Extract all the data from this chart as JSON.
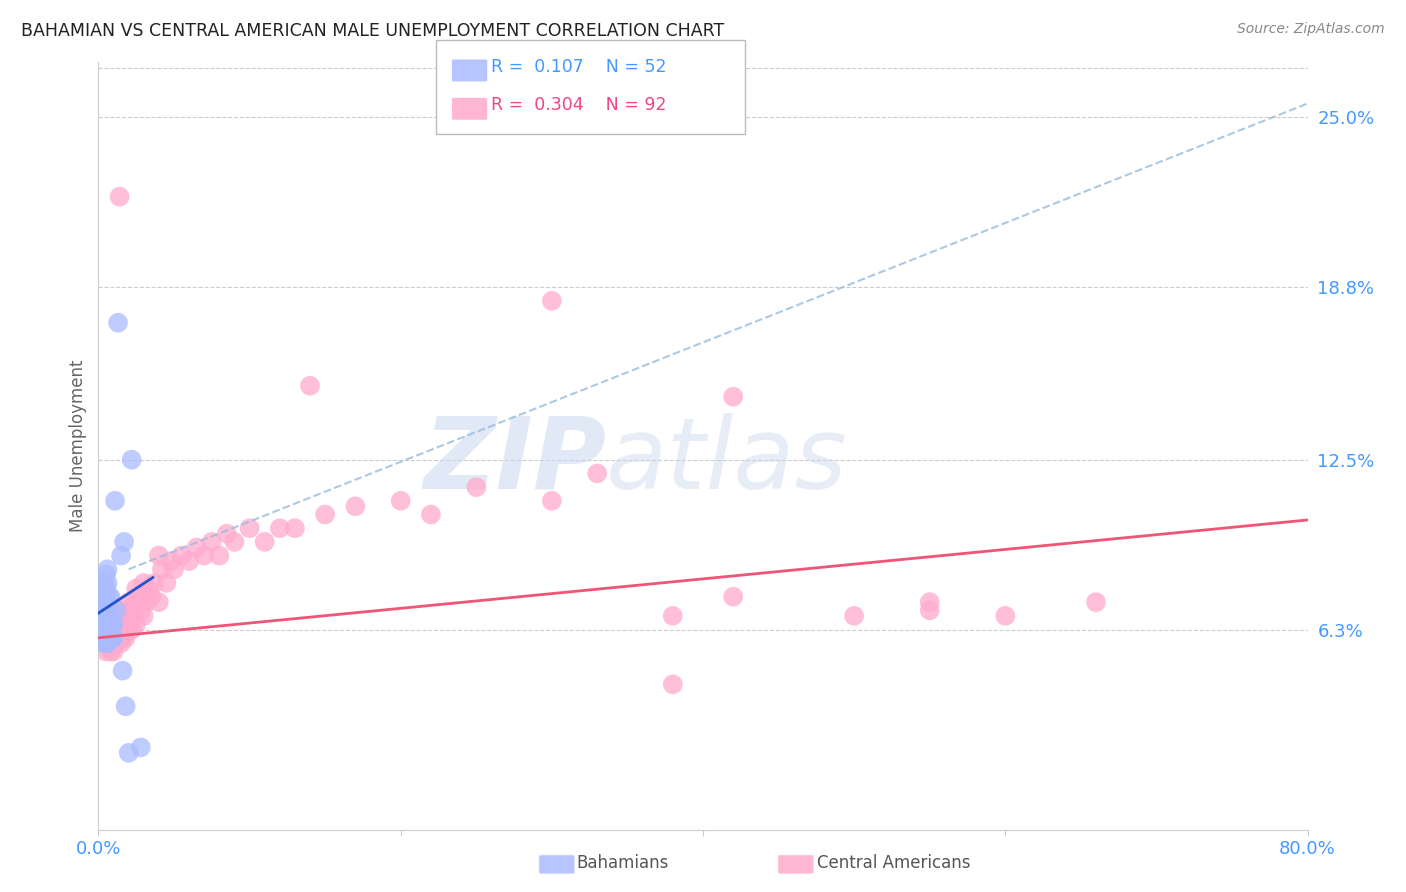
{
  "title": "BAHAMIAN VS CENTRAL AMERICAN MALE UNEMPLOYMENT CORRELATION CHART",
  "source": "Source: ZipAtlas.com",
  "ylabel": "Male Unemployment",
  "ytick_labels": [
    "25.0%",
    "18.8%",
    "12.5%",
    "6.3%"
  ],
  "ytick_values": [
    0.25,
    0.188,
    0.125,
    0.063
  ],
  "background_color": "#ffffff",
  "grid_color": "#cccccc",
  "blue_color": "#aabbff",
  "pink_color": "#ffaacc",
  "blue_line_color": "#2255cc",
  "pink_line_color": "#ee5577",
  "dash_line_color": "#99bbdd",
  "label_color": "#4499ff",
  "title_color": "#222222",
  "source_color": "#888888",
  "watermark": "ZIPatlas",
  "xmin": 0.0,
  "xmax": 0.8,
  "ymin": -0.01,
  "ymax": 0.27,
  "blue_r": 0.107,
  "blue_n": 52,
  "pink_r": 0.304,
  "pink_n": 92,
  "blue_scatter_x": [
    0.002,
    0.002,
    0.003,
    0.003,
    0.003,
    0.003,
    0.003,
    0.003,
    0.004,
    0.004,
    0.004,
    0.004,
    0.004,
    0.004,
    0.004,
    0.004,
    0.005,
    0.005,
    0.005,
    0.005,
    0.005,
    0.005,
    0.005,
    0.005,
    0.005,
    0.006,
    0.006,
    0.006,
    0.006,
    0.006,
    0.006,
    0.007,
    0.007,
    0.007,
    0.007,
    0.008,
    0.008,
    0.008,
    0.009,
    0.009,
    0.01,
    0.01,
    0.011,
    0.012,
    0.013,
    0.015,
    0.016,
    0.017,
    0.018,
    0.02,
    0.022,
    0.028
  ],
  "blue_scatter_y": [
    0.065,
    0.068,
    0.06,
    0.063,
    0.068,
    0.07,
    0.073,
    0.075,
    0.058,
    0.062,
    0.065,
    0.068,
    0.07,
    0.073,
    0.078,
    0.08,
    0.058,
    0.06,
    0.063,
    0.065,
    0.068,
    0.07,
    0.073,
    0.078,
    0.083,
    0.058,
    0.063,
    0.068,
    0.073,
    0.08,
    0.085,
    0.06,
    0.065,
    0.07,
    0.075,
    0.06,
    0.065,
    0.075,
    0.06,
    0.065,
    0.06,
    0.065,
    0.11,
    0.07,
    0.175,
    0.09,
    0.048,
    0.095,
    0.035,
    0.018,
    0.125,
    0.02
  ],
  "pink_scatter_x": [
    0.002,
    0.003,
    0.003,
    0.004,
    0.004,
    0.005,
    0.005,
    0.005,
    0.006,
    0.006,
    0.007,
    0.007,
    0.007,
    0.008,
    0.008,
    0.008,
    0.009,
    0.009,
    0.01,
    0.01,
    0.01,
    0.011,
    0.011,
    0.012,
    0.012,
    0.012,
    0.013,
    0.013,
    0.014,
    0.014,
    0.015,
    0.015,
    0.016,
    0.016,
    0.017,
    0.017,
    0.018,
    0.018,
    0.019,
    0.02,
    0.02,
    0.022,
    0.022,
    0.023,
    0.024,
    0.025,
    0.025,
    0.027,
    0.028,
    0.03,
    0.03,
    0.032,
    0.033,
    0.035,
    0.037,
    0.04,
    0.04,
    0.042,
    0.045,
    0.048,
    0.05,
    0.055,
    0.06,
    0.065,
    0.07,
    0.075,
    0.08,
    0.085,
    0.09,
    0.1,
    0.11,
    0.12,
    0.13,
    0.15,
    0.17,
    0.2,
    0.22,
    0.25,
    0.3,
    0.33,
    0.38,
    0.42,
    0.5,
    0.55,
    0.6,
    0.66,
    0.42,
    0.55,
    0.38,
    0.014,
    0.3,
    0.14
  ],
  "pink_scatter_y": [
    0.063,
    0.058,
    0.068,
    0.06,
    0.065,
    0.055,
    0.06,
    0.068,
    0.06,
    0.065,
    0.058,
    0.063,
    0.068,
    0.055,
    0.06,
    0.065,
    0.058,
    0.063,
    0.055,
    0.06,
    0.065,
    0.058,
    0.063,
    0.058,
    0.063,
    0.068,
    0.06,
    0.065,
    0.06,
    0.068,
    0.058,
    0.065,
    0.06,
    0.068,
    0.063,
    0.07,
    0.06,
    0.068,
    0.065,
    0.065,
    0.073,
    0.063,
    0.07,
    0.068,
    0.073,
    0.065,
    0.078,
    0.075,
    0.07,
    0.068,
    0.08,
    0.073,
    0.078,
    0.075,
    0.08,
    0.073,
    0.09,
    0.085,
    0.08,
    0.088,
    0.085,
    0.09,
    0.088,
    0.093,
    0.09,
    0.095,
    0.09,
    0.098,
    0.095,
    0.1,
    0.095,
    0.1,
    0.1,
    0.105,
    0.108,
    0.11,
    0.105,
    0.115,
    0.11,
    0.12,
    0.068,
    0.075,
    0.068,
    0.073,
    0.068,
    0.073,
    0.148,
    0.07,
    0.043,
    0.221,
    0.183,
    0.152
  ],
  "blue_trendline_x": [
    0.0,
    0.036
  ],
  "blue_trendline_y": [
    0.069,
    0.082
  ],
  "pink_trendline_x": [
    0.0,
    0.8
  ],
  "pink_trendline_y": [
    0.06,
    0.103
  ],
  "dash_trendline_x": [
    0.02,
    0.8
  ],
  "dash_trendline_y": [
    0.085,
    0.255
  ]
}
